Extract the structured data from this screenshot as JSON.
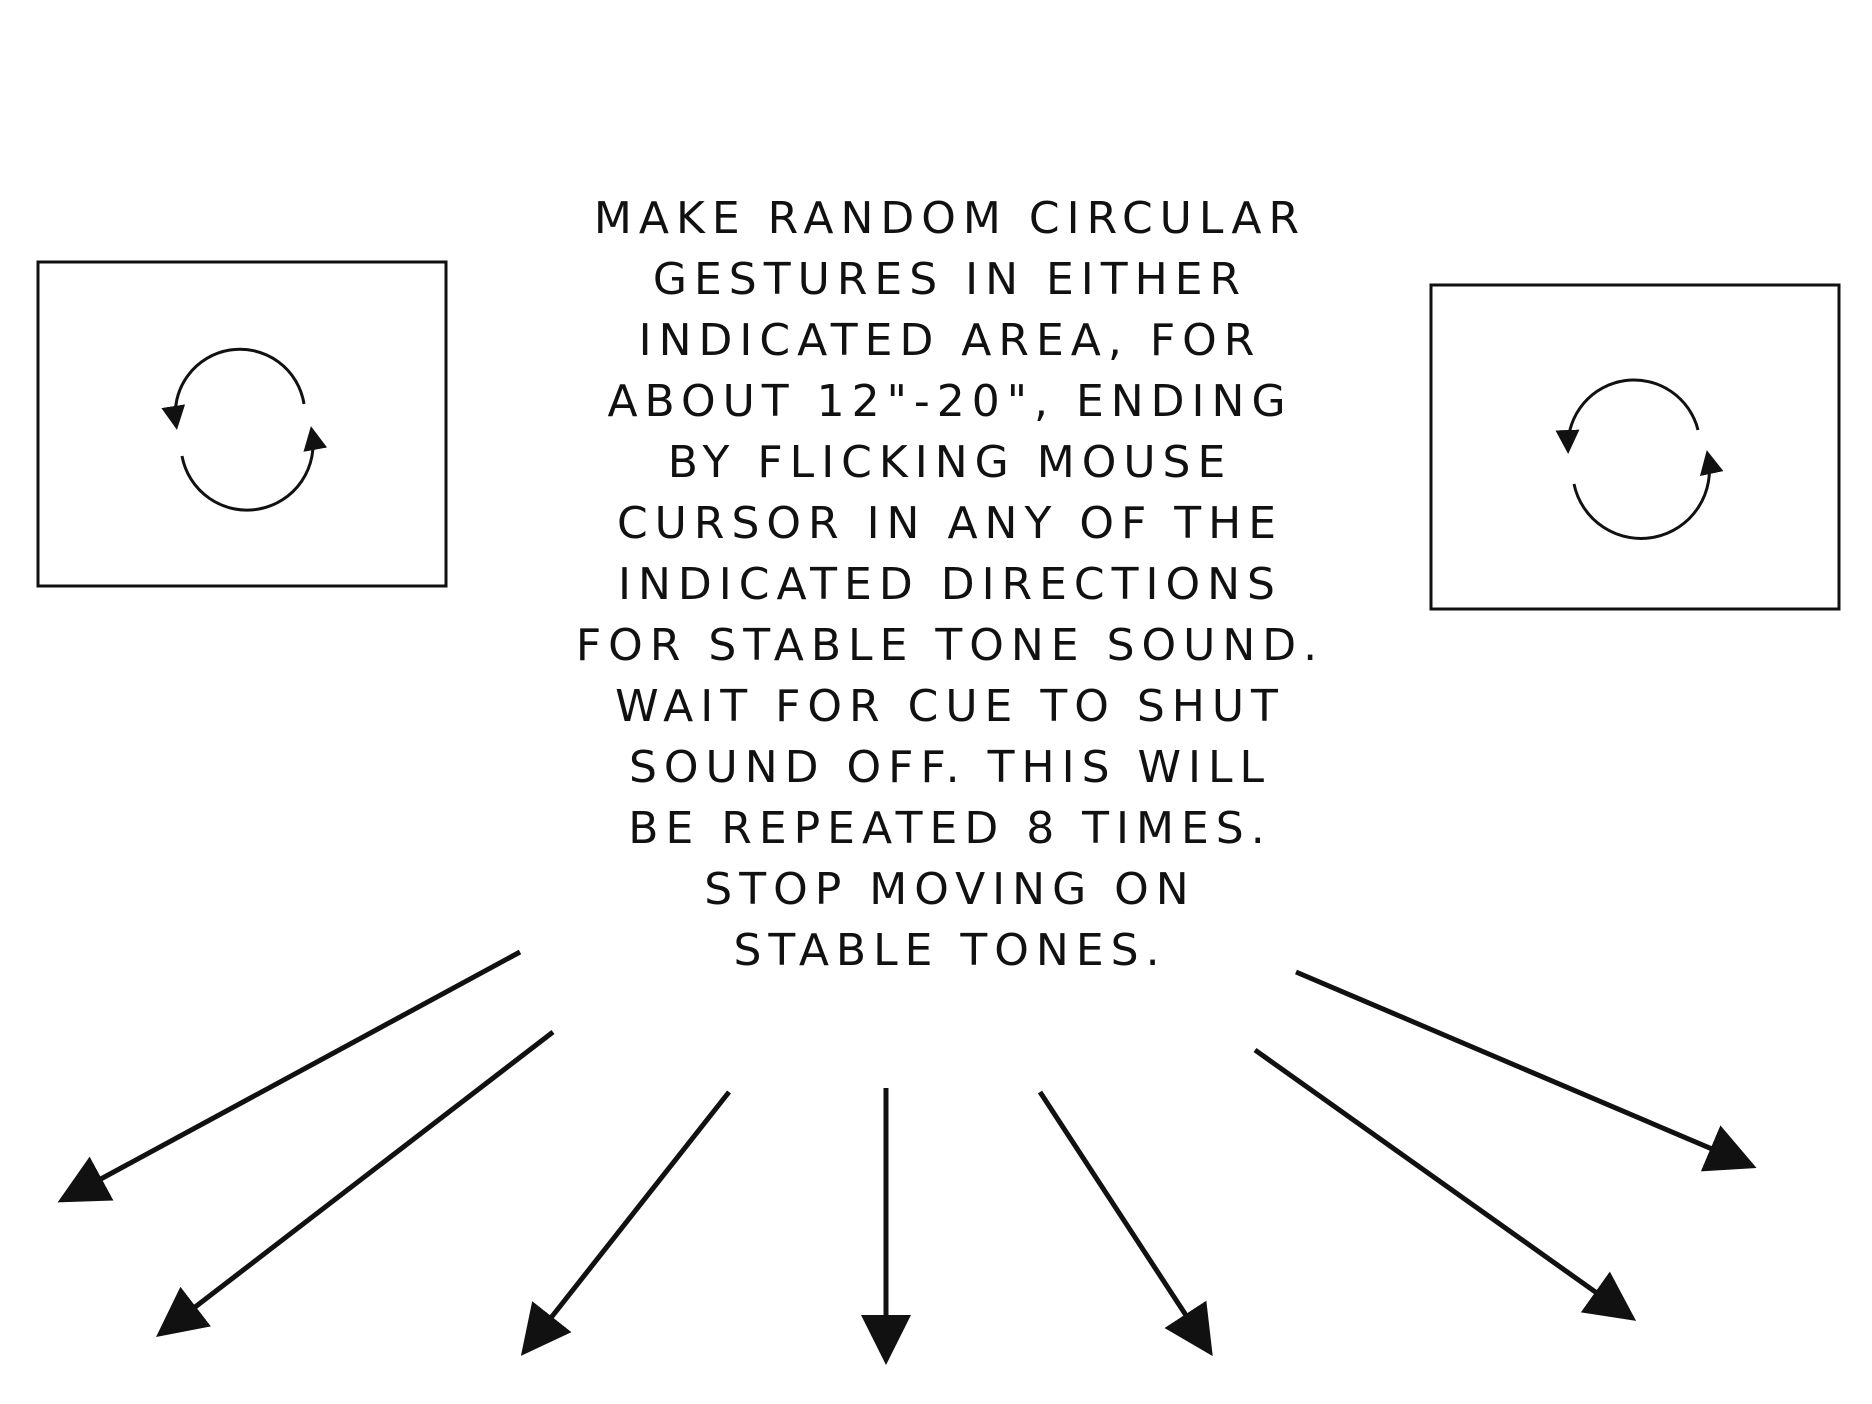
{
  "instructions": {
    "lines": [
      "MAKE RANDOM CIRCULAR",
      "GESTURES IN EITHER",
      "INDICATED AREA, FOR",
      "ABOUT 12\"-20\", ENDING",
      "BY FLICKING MOUSE",
      "CURSOR IN ANY OF THE",
      "INDICATED DIRECTIONS",
      "FOR STABLE TONE SOUND.",
      "WAIT FOR CUE TO SHUT",
      "SOUND OFF. THIS WILL",
      "BE REPEATED 8 TIMES.",
      "STOP MOVING ON",
      "STABLE TONES."
    ]
  },
  "gesture_areas": [
    {
      "name": "left",
      "icon": "circular-arrows-icon"
    },
    {
      "name": "right",
      "icon": "circular-arrows-icon"
    }
  ],
  "flick_directions": {
    "count": 7,
    "icon": "arrow-icon"
  },
  "colors": {
    "ink": "#111111",
    "background": "#ffffff"
  }
}
